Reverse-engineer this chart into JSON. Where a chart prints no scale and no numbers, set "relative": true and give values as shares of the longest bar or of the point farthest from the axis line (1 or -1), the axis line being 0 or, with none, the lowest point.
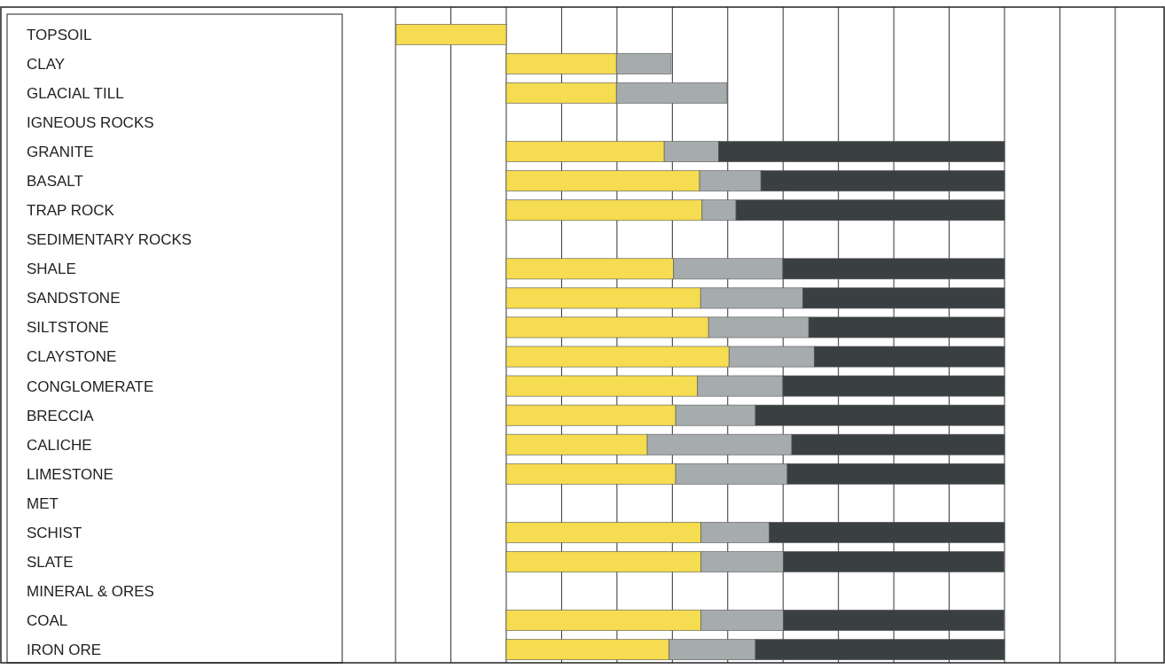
{
  "chart_data": {
    "type": "bar",
    "orientation": "horizontal",
    "stacked": true,
    "relative": true,
    "grid": "x",
    "categories": [
      "TOPSOIL",
      "CLAY",
      "GLACIAL TILL",
      "IGNEOUS ROCKS",
      "GRANITE",
      "BASALT",
      "TRAP ROCK",
      "SEDIMENTARY ROCKS",
      "SHALE",
      "SANDSTONE",
      "SILTSTONE",
      "CLAYSTONE",
      "CONGLOMERATE",
      "BRECCIA",
      "CALICHE",
      "LIMESTONE",
      "MET",
      "SCHIST",
      "SLATE",
      "MINERAL & ORES",
      "COAL",
      "IRON ORE"
    ],
    "series": [
      {
        "color": "#f5dc50",
        "values": [
          -0.221,
          0.221,
          0.221,
          null,
          0.317,
          0.388,
          0.393,
          null,
          0.336,
          0.39,
          0.406,
          0.447,
          0.384,
          0.34,
          0.283,
          0.34,
          null,
          0.391,
          0.391,
          null,
          0.391,
          0.327
        ]
      },
      {
        "color": "#a6acad",
        "values": [
          null,
          0.11,
          0.222,
          null,
          0.109,
          0.123,
          0.068,
          null,
          0.219,
          0.205,
          0.201,
          0.171,
          0.171,
          0.16,
          0.29,
          0.224,
          null,
          0.137,
          0.165,
          null,
          0.165,
          0.173
        ]
      },
      {
        "color": "#3a4042",
        "values": [
          null,
          null,
          null,
          null,
          0.574,
          0.489,
          0.539,
          null,
          0.445,
          0.405,
          0.393,
          0.382,
          0.445,
          0.5,
          0.427,
          0.436,
          null,
          0.472,
          0.443,
          null,
          0.443,
          0.5
        ]
      }
    ]
  }
}
